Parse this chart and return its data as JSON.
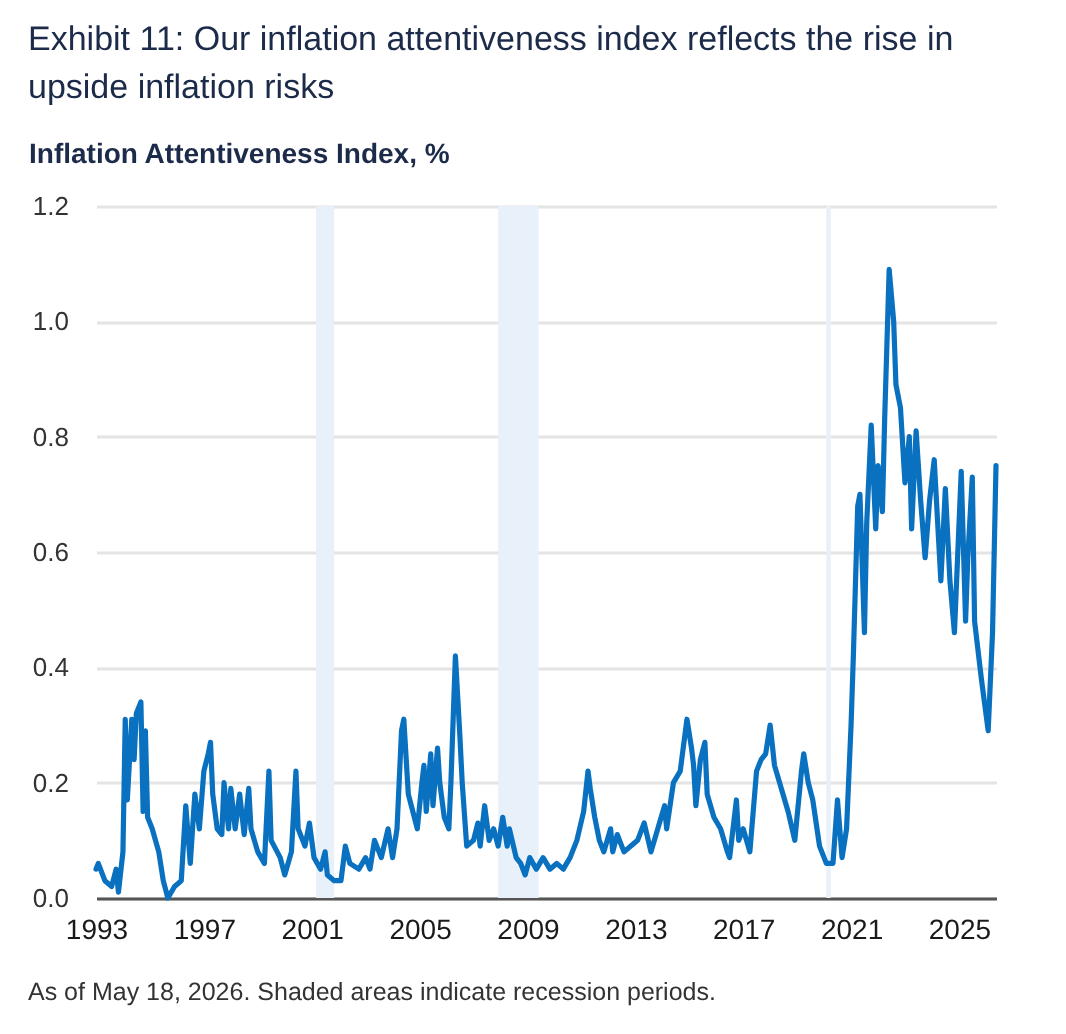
{
  "chart_data": {
    "type": "line",
    "title": "Exhibit 11: Our inflation attentiveness index reflects the rise in upside inflation risks",
    "ylabel": "Inflation Attentiveness Index, %",
    "annotations": [
      "As of May 18, 2026. Shaded areas indicate recession periods."
    ],
    "x": [
      "1993-01",
      "1993-02",
      "1993-05",
      "1993-08",
      "1993-10",
      "1993-11",
      "1994-01",
      "1994-02",
      "1994-03",
      "1994-05",
      "1994-06",
      "1994-07",
      "1994-09",
      "1994-10",
      "1994-11",
      "1994-12",
      "1995-02",
      "1995-05",
      "1995-07",
      "1995-09",
      "1995-12",
      "1996-03",
      "1996-05",
      "1996-07",
      "1996-09",
      "1996-11",
      "1997-01",
      "1997-03",
      "1997-04",
      "1997-05",
      "1997-07",
      "1997-09",
      "1997-10",
      "1997-12",
      "1998-01",
      "1998-03",
      "1998-05",
      "1998-07",
      "1998-09",
      "1998-10",
      "1999-01",
      "1999-04",
      "1999-06",
      "1999-07",
      "1999-11",
      "2000-01",
      "2000-04",
      "2000-06",
      "2000-07",
      "2000-10",
      "2000-12",
      "2001-02",
      "2001-05",
      "2001-07",
      "2001-08",
      "2001-11",
      "2002-02",
      "2002-04",
      "2002-06",
      "2002-10",
      "2003-01",
      "2003-03",
      "2003-05",
      "2003-08",
      "2003-11",
      "2004-01",
      "2004-03",
      "2004-05",
      "2004-06",
      "2004-08",
      "2004-10",
      "2004-12",
      "2005-02",
      "2005-03",
      "2005-04",
      "2005-06",
      "2005-07",
      "2005-09",
      "2005-10",
      "2005-12",
      "2006-02",
      "2006-03",
      "2006-05",
      "2006-07",
      "2006-08",
      "2006-10",
      "2007-01",
      "2007-03",
      "2007-04",
      "2007-06",
      "2007-08",
      "2007-10",
      "2007-12",
      "2008-02",
      "2008-04",
      "2008-05",
      "2008-08",
      "2008-10",
      "2008-12",
      "2009-02",
      "2009-05",
      "2009-08",
      "2009-11",
      "2010-02",
      "2010-05",
      "2010-08",
      "2010-11",
      "2011-02",
      "2011-04",
      "2011-05",
      "2011-07",
      "2011-09",
      "2011-11",
      "2012-02",
      "2012-03",
      "2012-05",
      "2012-08",
      "2012-11",
      "2013-02",
      "2013-05",
      "2013-08",
      "2013-11",
      "2014-02",
      "2014-03",
      "2014-06",
      "2014-09",
      "2014-12",
      "2015-02",
      "2015-03",
      "2015-04",
      "2015-06",
      "2015-08",
      "2015-09",
      "2015-12",
      "2016-03",
      "2016-06",
      "2016-07",
      "2016-10",
      "2016-11",
      "2017-01",
      "2017-04",
      "2017-07",
      "2017-09",
      "2017-11",
      "2018-01",
      "2018-03",
      "2018-06",
      "2018-09",
      "2018-12",
      "2019-03",
      "2019-04",
      "2019-06",
      "2019-08",
      "2019-11",
      "2020-02",
      "2020-05",
      "2020-07",
      "2020-09",
      "2020-11",
      "2021-01",
      "2021-02",
      "2021-04",
      "2021-05",
      "2021-07",
      "2021-08",
      "2021-10",
      "2021-12",
      "2022-01",
      "2022-03",
      "2022-04",
      "2022-06",
      "2022-08",
      "2022-09",
      "2022-11",
      "2023-01",
      "2023-03",
      "2023-04",
      "2023-06",
      "2023-08",
      "2023-10",
      "2023-12",
      "2024-02",
      "2024-05",
      "2024-07",
      "2024-09",
      "2024-11",
      "2025-02",
      "2025-04",
      "2025-05",
      "2025-07",
      "2025-08",
      "2025-11",
      "2026-02",
      "2026-04",
      "2026-05-18"
    ],
    "series": [
      {
        "color": "#0a71c0",
        "values": [
          0.05,
          0.06,
          0.03,
          0.02,
          0.05,
          0.01,
          0.08,
          0.31,
          0.17,
          0.31,
          0.24,
          0.32,
          0.34,
          0.15,
          0.29,
          0.14,
          0.12,
          0.08,
          0.03,
          0.0,
          0.02,
          0.03,
          0.16,
          0.06,
          0.18,
          0.12,
          0.22,
          0.25,
          0.27,
          0.18,
          0.12,
          0.11,
          0.2,
          0.12,
          0.19,
          0.12,
          0.18,
          0.11,
          0.19,
          0.12,
          0.08,
          0.06,
          0.22,
          0.1,
          0.07,
          0.04,
          0.08,
          0.22,
          0.12,
          0.09,
          0.13,
          0.07,
          0.05,
          0.08,
          0.04,
          0.03,
          0.03,
          0.09,
          0.06,
          0.05,
          0.07,
          0.05,
          0.1,
          0.07,
          0.12,
          0.07,
          0.12,
          0.29,
          0.31,
          0.18,
          0.15,
          0.12,
          0.2,
          0.23,
          0.15,
          0.25,
          0.16,
          0.26,
          0.2,
          0.14,
          0.12,
          0.2,
          0.42,
          0.28,
          0.2,
          0.09,
          0.1,
          0.13,
          0.09,
          0.16,
          0.1,
          0.12,
          0.09,
          0.14,
          0.09,
          0.12,
          0.07,
          0.06,
          0.04,
          0.07,
          0.05,
          0.07,
          0.05,
          0.06,
          0.05,
          0.07,
          0.1,
          0.15,
          0.22,
          0.19,
          0.14,
          0.1,
          0.08,
          0.12,
          0.08,
          0.11,
          0.08,
          0.09,
          0.1,
          0.13,
          0.08,
          0.12,
          0.16,
          0.12,
          0.2,
          0.22,
          0.31,
          0.26,
          0.23,
          0.16,
          0.24,
          0.27,
          0.18,
          0.14,
          0.12,
          0.08,
          0.07,
          0.17,
          0.1,
          0.12,
          0.08,
          0.22,
          0.24,
          0.25,
          0.3,
          0.23,
          0.19,
          0.15,
          0.1,
          0.22,
          0.25,
          0.2,
          0.17,
          0.09,
          0.06,
          0.06,
          0.17,
          0.07,
          0.12,
          0.3,
          0.42,
          0.68,
          0.7,
          0.46,
          0.65,
          0.82,
          0.64,
          0.75,
          0.67,
          0.83,
          1.09,
          1.0,
          0.89,
          0.85,
          0.72,
          0.8,
          0.64,
          0.81,
          0.69,
          0.59,
          0.69,
          0.76,
          0.55,
          0.71,
          0.55,
          0.46,
          0.74,
          0.48,
          0.59,
          0.73,
          0.48,
          0.38,
          0.29,
          0.46,
          0.75
        ]
      }
    ],
    "xlim": [
      "1993-01-01",
      "2026-05-18"
    ],
    "xticks": [
      "1993",
      "1997",
      "2001",
      "2005",
      "2009",
      "2013",
      "2017",
      "2021",
      "2025"
    ],
    "ylim": [
      0,
      1.2
    ],
    "yticks": [
      {
        "value": 0,
        "label": "0.0"
      },
      0.2,
      0.4,
      0.6,
      0.8,
      {
        "value": 1,
        "label": "1.0"
      },
      1.2
    ],
    "grid": "y",
    "bands": [
      {
        "axis": "x",
        "from": "2001-03",
        "to": "2001-11",
        "color": "#e8f1f9"
      },
      {
        "axis": "x",
        "from": "2007-12",
        "to": "2009-06",
        "color": "#e8f1f9"
      },
      {
        "axis": "x",
        "from": "2020-02",
        "to": "2020-04",
        "color": "#e8f1f9"
      }
    ]
  }
}
